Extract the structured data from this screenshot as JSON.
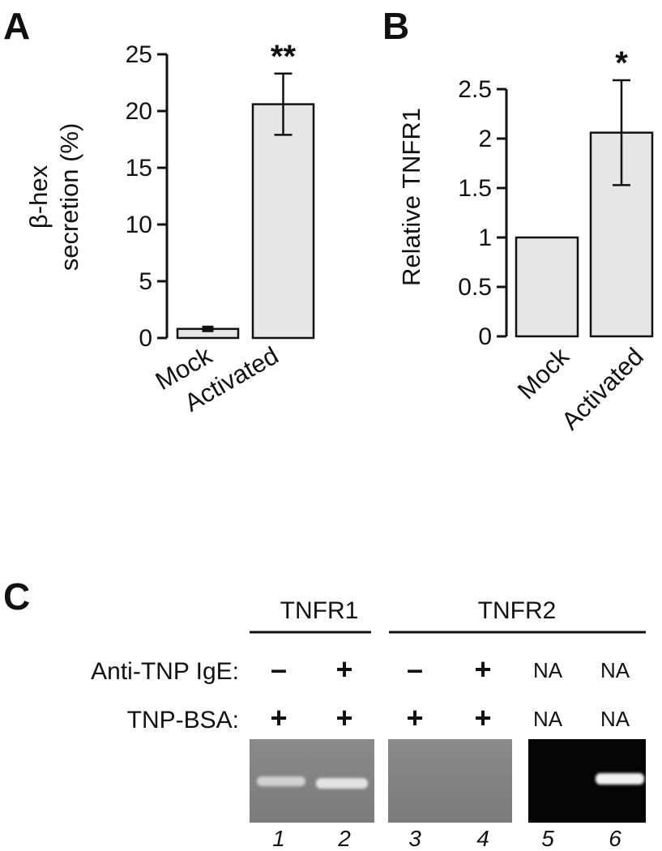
{
  "panels": {
    "a": "A",
    "b": "B",
    "c": "C"
  },
  "chart_data": [
    {
      "type": "bar",
      "panel": "A",
      "categories": [
        "Mock",
        "Activated"
      ],
      "values": [
        0.8,
        20.6
      ],
      "errors": [
        0.3,
        2.7
      ],
      "significance": [
        "",
        "**"
      ],
      "ylabel_lines": [
        "β-hex",
        "secretion (%)"
      ],
      "ylim": [
        0,
        25
      ],
      "yticks": [
        0,
        5,
        10,
        15,
        20,
        25
      ],
      "ytick_labels": [
        "0",
        "5",
        "10",
        "15",
        "20",
        "25"
      ],
      "bar_color": "#e6e6e6",
      "grid": false
    },
    {
      "type": "bar",
      "panel": "B",
      "categories": [
        "Mock",
        "Activated"
      ],
      "values": [
        1.0,
        2.06
      ],
      "errors": [
        0,
        0.53
      ],
      "significance": [
        "",
        "*"
      ],
      "ylabel_lines": [
        "Relative TNFR1"
      ],
      "ylim": [
        0,
        2.5
      ],
      "yticks": [
        0,
        0.5,
        1,
        1.5,
        2,
        2.5
      ],
      "ytick_labels": [
        "0",
        "0.5",
        "1",
        "1.5",
        "2",
        "2.5"
      ],
      "bar_color": "#e6e6e6",
      "grid": false
    }
  ],
  "gel": {
    "groups": [
      "TNFR1",
      "TNFR2"
    ],
    "rows": [
      {
        "label": "Anti-TNP IgE:",
        "values": [
          "–",
          "+",
          "–",
          "+",
          "NA",
          "NA"
        ]
      },
      {
        "label": "TNP-BSA:",
        "values": [
          "+",
          "+",
          "+",
          "+",
          "NA",
          "NA"
        ]
      }
    ],
    "lanes": [
      "1",
      "2",
      "3",
      "4",
      "5",
      "6"
    ],
    "band_present": [
      true,
      true,
      false,
      false,
      false,
      true
    ]
  }
}
